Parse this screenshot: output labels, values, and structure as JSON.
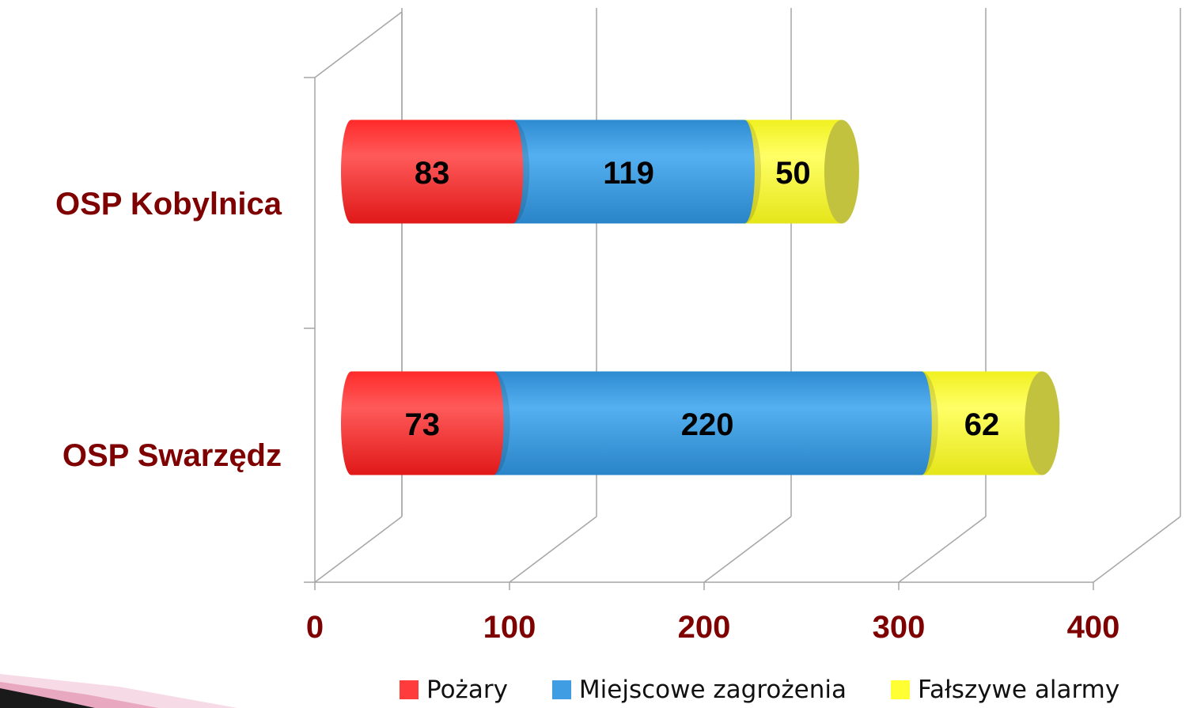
{
  "chart_data": {
    "type": "bar",
    "orientation": "horizontal",
    "stacked": true,
    "style": "3d-cylinder",
    "categories": [
      "OSP Kobylnica",
      "OSP Swarzędz"
    ],
    "series": [
      {
        "name": "Pożary",
        "values": [
          83,
          73
        ],
        "color": "#ff3b3b"
      },
      {
        "name": "Miejscowe zagrożenia",
        "values": [
          119,
          220
        ],
        "color": "#3f9ee3"
      },
      {
        "name": "Fałszywe alarmy",
        "values": [
          50,
          62
        ],
        "color": "#ffff33"
      }
    ],
    "xlim": [
      0,
      400
    ],
    "x_ticks": [
      "0",
      "100",
      "200",
      "300",
      "400"
    ],
    "grid": true,
    "legend": "bottom-right",
    "label_color": "#7f0000"
  }
}
